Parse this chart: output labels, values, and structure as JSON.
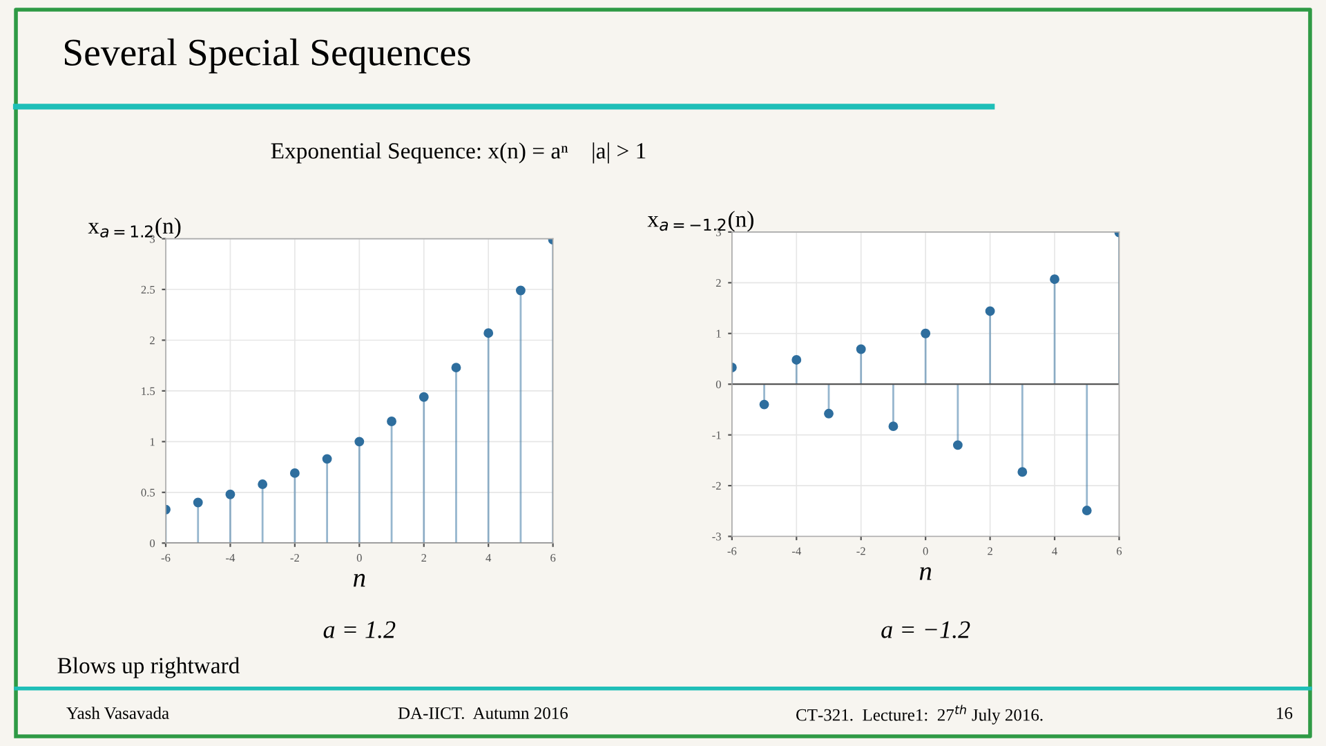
{
  "chart_data": [
    {
      "type": "lollipop",
      "title": "Several Special Sequences",
      "subtitle": "Exponential Sequence: x(n) = aⁿ    |a| > 1",
      "xlabel": "n",
      "ylabel": "x$_{a=1.2}$(n)",
      "x": [
        -6,
        -5,
        -4,
        -3,
        -2,
        -1,
        0,
        1,
        2,
        3,
        4,
        5,
        6
      ],
      "series": [
        {
          "color": "#2e6e9e",
          "values": [
            0.33,
            0.4,
            0.48,
            0.58,
            0.69,
            0.83,
            1.0,
            1.2,
            1.44,
            1.73,
            2.07,
            2.49,
            2.99
          ]
        }
      ],
      "xlim": [
        -6,
        6
      ],
      "xticks": [
        -6,
        -4,
        -2,
        0,
        2,
        4,
        6
      ],
      "ylim": [
        0,
        3
      ],
      "yticks": [
        0,
        0.5,
        1,
        1.5,
        2,
        2.5,
        3
      ],
      "grid": true,
      "marker": "circle",
      "annotations": [
        "a = 1.2",
        "Blows up rightward",
        "Yash Vasavada",
        "DA-IICT.  Autumn 2016",
        "CT-321.  Lecture1:  27$^{th}$ July 2016.",
        "16"
      ]
    },
    {
      "type": "lollipop",
      "xlabel": "n",
      "ylabel": "x$_{a=−1.2}$(n)",
      "x": [
        -6,
        -5,
        -4,
        -3,
        -2,
        -1,
        0,
        1,
        2,
        3,
        4,
        5,
        6
      ],
      "series": [
        {
          "color": "#2e6e9e",
          "values": [
            0.33,
            -0.4,
            0.48,
            -0.58,
            0.69,
            -0.83,
            1.0,
            -1.2,
            1.44,
            -1.73,
            2.07,
            -2.49,
            2.99
          ]
        }
      ],
      "xlim": [
        -6,
        6
      ],
      "xticks": [
        -6,
        -4,
        -2,
        0,
        2,
        4,
        6
      ],
      "ylim": [
        -3,
        3
      ],
      "yticks": [
        -3,
        -2,
        -1,
        0,
        1,
        2,
        3
      ],
      "grid": true,
      "marker": "circle",
      "annotations": [
        "a = −1.2"
      ]
    }
  ]
}
